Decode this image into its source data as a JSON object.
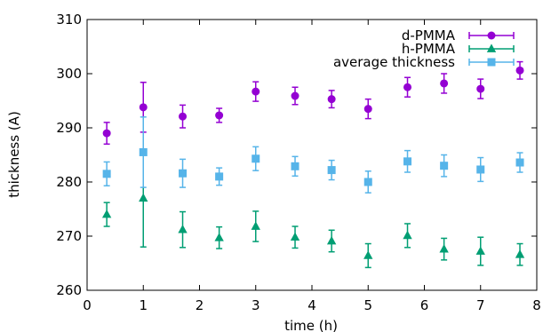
{
  "chart_data": {
    "type": "scatter",
    "xlabel": "time (h)",
    "ylabel": "thickness (A)",
    "xlim": [
      0,
      8
    ],
    "ylim": [
      260,
      310
    ],
    "xticks": [
      "0",
      "1",
      "2",
      "3",
      "4",
      "5",
      "6",
      "7",
      "8"
    ],
    "yticks": [
      "260",
      "270",
      "280",
      "290",
      "300",
      "310"
    ],
    "grid": false,
    "legend_position": "top-right",
    "series": [
      {
        "name": "d-PMMA",
        "color": "#9400d3",
        "marker": "circle",
        "x": [
          0.35,
          1.0,
          1.7,
          2.35,
          3.0,
          3.7,
          4.35,
          5.0,
          5.7,
          6.35,
          7.0,
          7.7
        ],
        "y": [
          289.0,
          293.8,
          292.1,
          292.3,
          296.7,
          295.9,
          295.3,
          293.5,
          297.5,
          298.2,
          297.2,
          300.6
        ],
        "err": [
          2.0,
          4.6,
          2.1,
          1.3,
          1.8,
          1.6,
          1.6,
          1.8,
          1.8,
          1.8,
          1.8,
          1.6
        ]
      },
      {
        "name": "h-PMMA",
        "color": "#009e73",
        "marker": "triangle",
        "x": [
          0.35,
          1.0,
          1.7,
          2.35,
          3.0,
          3.7,
          4.35,
          5.0,
          5.7,
          6.35,
          7.0,
          7.7
        ],
        "y": [
          274.0,
          277.0,
          271.2,
          269.7,
          271.8,
          269.8,
          269.1,
          266.4,
          270.1,
          267.6,
          267.2,
          266.6
        ],
        "err": [
          2.2,
          9.0,
          3.3,
          2.0,
          2.8,
          2.0,
          2.0,
          2.2,
          2.2,
          2.0,
          2.6,
          2.0
        ]
      },
      {
        "name": "average thickness",
        "color": "#56b4e9",
        "marker": "square",
        "x": [
          0.35,
          1.0,
          1.7,
          2.35,
          3.0,
          3.7,
          4.35,
          5.0,
          5.7,
          6.35,
          7.0,
          7.7
        ],
        "y": [
          281.5,
          285.5,
          281.6,
          281.0,
          284.3,
          282.9,
          282.2,
          280.0,
          283.8,
          283.0,
          282.3,
          283.6
        ],
        "err": [
          2.2,
          6.5,
          2.6,
          1.6,
          2.2,
          1.8,
          1.8,
          2.0,
          2.0,
          2.0,
          2.2,
          1.8
        ]
      }
    ]
  }
}
